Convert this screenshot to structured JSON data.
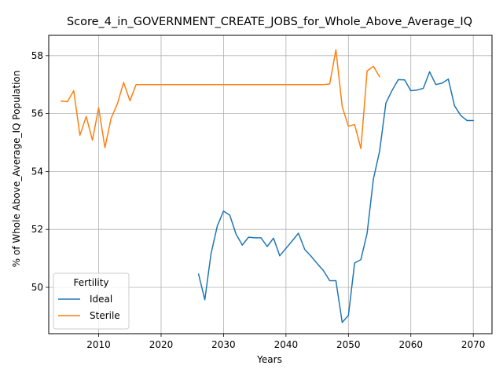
{
  "chart_data": {
    "type": "line",
    "title": "Score_4_in_GOVERNMENT_CREATE_JOBS_for_Whole_Above_Average_IQ",
    "xlabel": "Years",
    "ylabel": "% of Whole Above_Average_IQ Population",
    "xlim": [
      2002,
      2073
    ],
    "ylim": [
      48.4,
      58.7
    ],
    "xticks": [
      2010,
      2020,
      2030,
      2040,
      2050,
      2060,
      2070
    ],
    "yticks": [
      50,
      52,
      54,
      56,
      58
    ],
    "grid": true,
    "legend": {
      "title": "Fertility",
      "placement": "lower-left"
    },
    "series": [
      {
        "name": "Ideal",
        "color": "#1f77b4",
        "x": [
          2026,
          2027,
          2028,
          2029,
          2030,
          2031,
          2032,
          2033,
          2034,
          2035,
          2036,
          2037,
          2038,
          2039,
          2040,
          2041,
          2042,
          2043,
          2044,
          2045,
          2046,
          2047,
          2048,
          2049,
          2050,
          2051,
          2052,
          2053,
          2054,
          2055,
          2056,
          2057,
          2058,
          2059,
          2060,
          2061,
          2062,
          2063,
          2064,
          2065,
          2066,
          2067,
          2068,
          2069,
          2070
        ],
        "values": [
          50.46,
          49.57,
          51.16,
          52.12,
          52.63,
          52.49,
          51.84,
          51.46,
          51.73,
          51.71,
          51.71,
          51.41,
          51.7,
          51.09,
          51.35,
          51.6,
          51.87,
          51.31,
          51.08,
          50.82,
          50.58,
          50.23,
          50.23,
          48.79,
          49.03,
          50.84,
          50.96,
          51.87,
          53.74,
          54.7,
          56.36,
          56.8,
          57.17,
          57.16,
          56.79,
          56.81,
          56.87,
          57.44,
          57.0,
          57.05,
          57.19,
          56.27,
          55.93,
          55.76,
          55.76
        ]
      },
      {
        "name": "Sterile",
        "color": "#ff7f0e",
        "x": [
          2004,
          2005,
          2006,
          2007,
          2008,
          2009,
          2010,
          2011,
          2012,
          2013,
          2014,
          2015,
          2016,
          2017,
          2018,
          2019,
          2020,
          2021,
          2022,
          2023,
          2024,
          2025,
          2026,
          2027,
          2028,
          2029,
          2030,
          2031,
          2032,
          2033,
          2034,
          2035,
          2036,
          2037,
          2038,
          2039,
          2040,
          2041,
          2042,
          2043,
          2044,
          2045,
          2046,
          2047,
          2048,
          2049,
          2050,
          2051,
          2052,
          2053,
          2054,
          2055
        ],
        "values": [
          56.43,
          56.41,
          56.79,
          55.25,
          55.9,
          55.08,
          56.2,
          54.82,
          55.84,
          56.34,
          57.07,
          56.44,
          57.0,
          57.0,
          57.0,
          57.0,
          57.0,
          57.0,
          57.0,
          57.0,
          57.0,
          57.0,
          57.0,
          57.0,
          57.0,
          57.0,
          57.0,
          57.0,
          57.0,
          57.0,
          57.0,
          57.0,
          57.0,
          57.0,
          57.0,
          57.0,
          57.0,
          57.0,
          57.0,
          57.0,
          57.0,
          57.0,
          57.0,
          57.02,
          58.2,
          56.24,
          55.56,
          55.62,
          54.79,
          57.47,
          57.63,
          57.27
        ]
      }
    ]
  }
}
